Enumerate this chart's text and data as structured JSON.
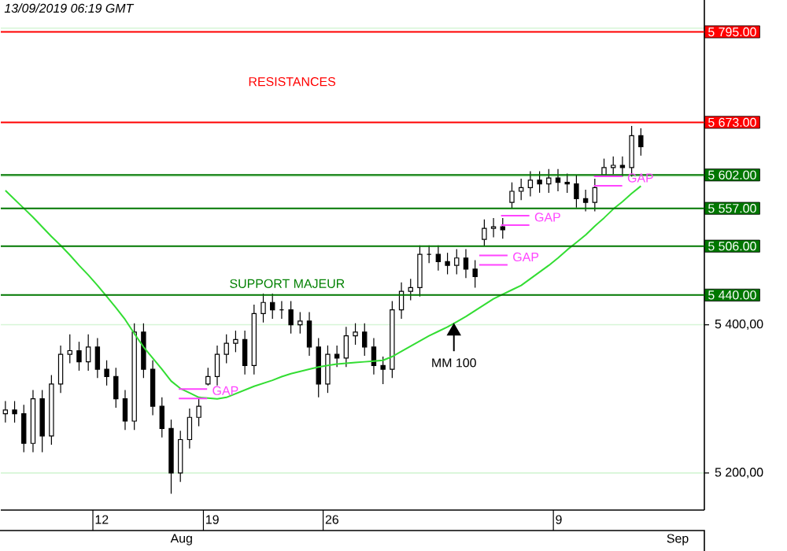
{
  "chart_data": {
    "type": "candlestick",
    "title": "13/09/2019 06:19 GMT",
    "categories": [
      null,
      null,
      null,
      null,
      null,
      null,
      null,
      null,
      null,
      null,
      "12",
      null,
      null,
      null,
      null,
      null,
      null,
      null,
      null,
      null,
      null,
      null,
      "19",
      null,
      null,
      null,
      null,
      null,
      null,
      null,
      null,
      null,
      null,
      null,
      null,
      "26",
      null,
      null,
      null,
      null,
      null,
      null,
      null,
      null,
      null,
      null,
      null,
      null,
      null,
      null,
      null,
      null,
      null,
      null,
      null,
      null,
      null,
      null,
      null,
      null,
      "9",
      null,
      null,
      null,
      null,
      null,
      null,
      null,
      null,
      null
    ],
    "ylim": [
      5150,
      5838
    ],
    "yticks": [
      {
        "value": 5200,
        "label": "5 200,00"
      },
      {
        "value": 5400,
        "label": "5 400,00"
      },
      {
        "value": 5600,
        "label": null
      },
      {
        "value": 5800,
        "label": null
      }
    ],
    "grid": "y",
    "series": [
      {
        "color": "#000000",
        "ohlc": [
          [
            5280,
            5297,
            5268,
            5285
          ],
          [
            5285,
            5297,
            5268,
            5280
          ],
          [
            5280,
            5292,
            5228,
            5240
          ],
          [
            5240,
            5312,
            5228,
            5300
          ],
          [
            5300,
            5312,
            5228,
            5250
          ],
          [
            5250,
            5332,
            5238,
            5320
          ],
          [
            5320,
            5372,
            5308,
            5360
          ],
          [
            5360,
            5387,
            5348,
            5365
          ],
          [
            5365,
            5377,
            5338,
            5350
          ],
          [
            5350,
            5387,
            5338,
            5370
          ],
          [
            5370,
            5382,
            5328,
            5340
          ],
          [
            5340,
            5352,
            5318,
            5330
          ],
          [
            5330,
            5342,
            5288,
            5300
          ],
          [
            5300,
            5312,
            5258,
            5270
          ],
          [
            5270,
            5402,
            5258,
            5390
          ],
          [
            5390,
            5402,
            5328,
            5340
          ],
          [
            5340,
            5352,
            5278,
            5290
          ],
          [
            5290,
            5302,
            5248,
            5260
          ],
          [
            5260,
            5272,
            5172,
            5200
          ],
          [
            5200,
            5257,
            5188,
            5245
          ],
          [
            5245,
            5287,
            5233,
            5275
          ],
          [
            5275,
            5302,
            5263,
            5290
          ],
          [
            5320,
            5342,
            5318,
            5330
          ],
          [
            5330,
            5372,
            5318,
            5360
          ],
          [
            5360,
            5387,
            5348,
            5375
          ],
          [
            5375,
            5392,
            5363,
            5380
          ],
          [
            5380,
            5392,
            5333,
            5345
          ],
          [
            5345,
            5427,
            5333,
            5415
          ],
          [
            5415,
            5442,
            5403,
            5430
          ],
          [
            5430,
            5442,
            5408,
            5420
          ],
          [
            5420,
            5432,
            5408,
            5420
          ],
          [
            5420,
            5432,
            5388,
            5400
          ],
          [
            5400,
            5417,
            5388,
            5405
          ],
          [
            5405,
            5417,
            5358,
            5370
          ],
          [
            5370,
            5382,
            5302,
            5320
          ],
          [
            5320,
            5372,
            5308,
            5360
          ],
          [
            5360,
            5372,
            5343,
            5355
          ],
          [
            5355,
            5397,
            5343,
            5385
          ],
          [
            5385,
            5402,
            5373,
            5390
          ],
          [
            5390,
            5402,
            5358,
            5370
          ],
          [
            5370,
            5382,
            5333,
            5345
          ],
          [
            5345,
            5357,
            5320,
            5340
          ],
          [
            5340,
            5432,
            5328,
            5420
          ],
          [
            5420,
            5457,
            5408,
            5445
          ],
          [
            5445,
            5462,
            5433,
            5450
          ],
          [
            5450,
            5507,
            5438,
            5495
          ],
          [
            5495,
            5507,
            5483,
            5495
          ],
          [
            5495,
            5507,
            5473,
            5485
          ],
          [
            5485,
            5497,
            5468,
            5480
          ],
          [
            5480,
            5502,
            5468,
            5490
          ],
          [
            5490,
            5502,
            5463,
            5475
          ],
          [
            5475,
            5487,
            5450,
            5465
          ],
          [
            5515,
            5542,
            5506,
            5530
          ],
          [
            5530,
            5544,
            5518,
            5532
          ],
          [
            5532,
            5544,
            5516,
            5528
          ],
          [
            5565,
            5592,
            5557,
            5580
          ],
          [
            5580,
            5597,
            5568,
            5585
          ],
          [
            5585,
            5607,
            5573,
            5595
          ],
          [
            5595,
            5607,
            5578,
            5590
          ],
          [
            5590,
            5610,
            5578,
            5598
          ],
          [
            5598,
            5610,
            5580,
            5592
          ],
          [
            5592,
            5604,
            5578,
            5590
          ],
          [
            5590,
            5602,
            5558,
            5570
          ],
          [
            5570,
            5582,
            5553,
            5565
          ],
          [
            5565,
            5597,
            5553,
            5585
          ],
          [
            5602,
            5624,
            5600,
            5612
          ],
          [
            5612,
            5627,
            5603,
            5615
          ],
          [
            5615,
            5627,
            5600,
            5612
          ],
          [
            5612,
            5668,
            5600,
            5655
          ],
          [
            5655,
            5665,
            5628,
            5640
          ]
        ]
      },
      {
        "type": "line",
        "color": "#33dd33",
        "values": [
          5581,
          5569,
          5557,
          5545,
          5532,
          5519,
          5507,
          5494,
          5480,
          5467,
          5453,
          5438,
          5423,
          5407,
          5388,
          5370,
          5355,
          5340,
          5324,
          5314,
          5308,
          5302,
          5301,
          5300,
          5302,
          5307,
          5312,
          5317,
          5321,
          5325,
          5330,
          5334,
          5337,
          5340,
          5343,
          5345,
          5347,
          5348,
          5349,
          5350,
          5351,
          5352,
          5357,
          5364,
          5371,
          5378,
          5385,
          5391,
          5397,
          5404,
          5411,
          5419,
          5427,
          5435,
          5441,
          5447,
          5453,
          5462,
          5471,
          5480,
          5490,
          5501,
          5511,
          5521,
          5533,
          5544,
          5556,
          5566,
          5577,
          5587
        ]
      }
    ],
    "ref_lines": [
      {
        "axis": "y",
        "value": 5795,
        "label": "5 795.00",
        "color": "#ff0000"
      },
      {
        "axis": "y",
        "value": 5673,
        "label": "5 673.00",
        "color": "#ff0000"
      },
      {
        "axis": "y",
        "value": 5602,
        "label": "5 602.00",
        "color": "#007700"
      },
      {
        "axis": "y",
        "value": 5557,
        "label": "5 557.00",
        "color": "#007700"
      },
      {
        "axis": "y",
        "value": 5506,
        "label": "5 506.00",
        "color": "#007700"
      },
      {
        "axis": "y",
        "value": 5440,
        "label": "5 440.00",
        "color": "#007700"
      }
    ],
    "annotations": [
      "RESISTANCES",
      "SUPPORT MAJEUR",
      "MM 100",
      "GAP",
      "GAP",
      "GAP",
      "GAP",
      "Aug",
      "Sep"
    ]
  }
}
